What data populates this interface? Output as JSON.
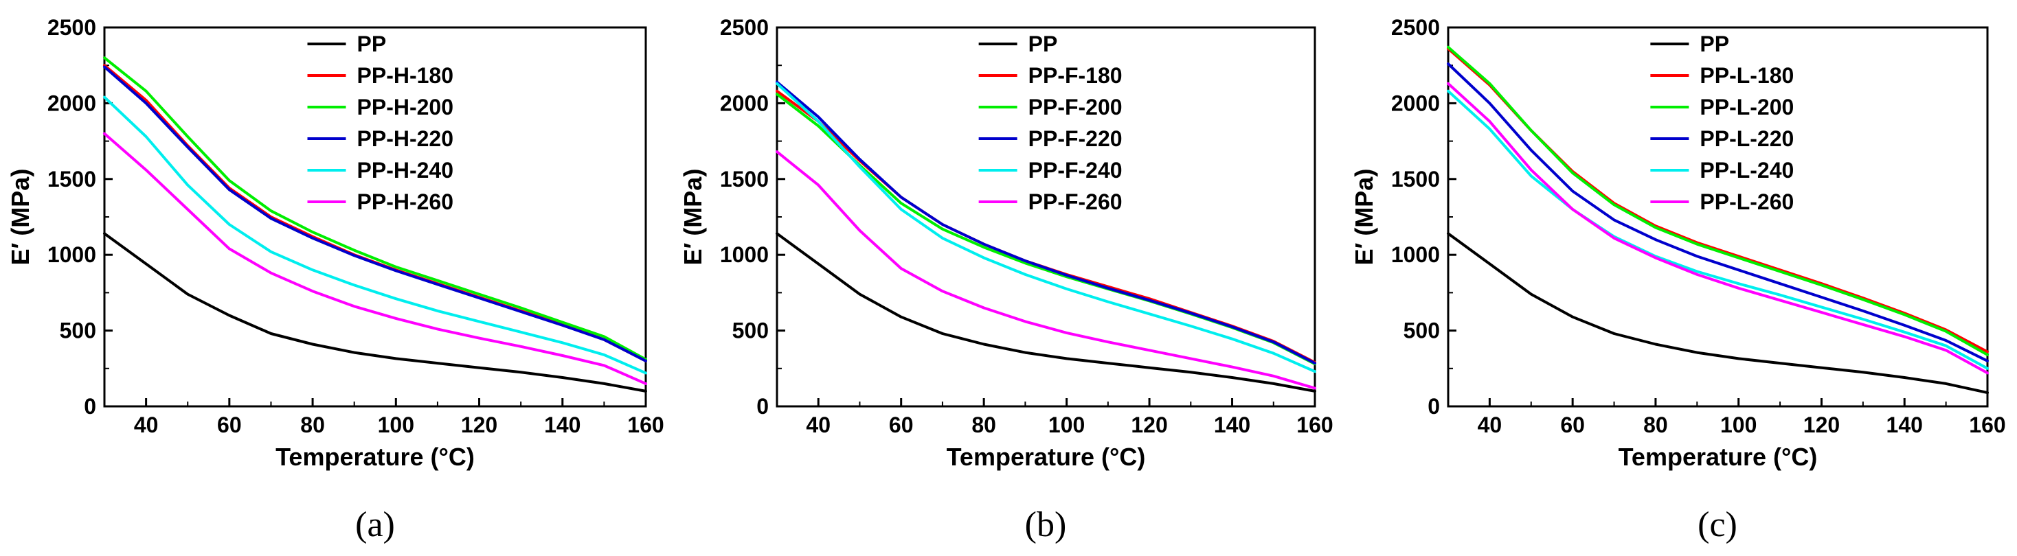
{
  "figure": {
    "panels": [
      "(a)",
      "(b)",
      "(c)"
    ]
  },
  "chart_data": [
    {
      "type": "line",
      "panel_label": "(a)",
      "xlabel": "Temperature (°C)",
      "ylabel": "E′ (MPa)",
      "xlim": [
        30,
        160
      ],
      "ylim": [
        0,
        2500
      ],
      "x_ticks": [
        40,
        60,
        80,
        100,
        120,
        140,
        160
      ],
      "y_ticks": [
        0,
        500,
        1000,
        1500,
        2000,
        2500
      ],
      "legend_position": "top-right",
      "x": [
        30,
        40,
        50,
        60,
        70,
        80,
        90,
        100,
        110,
        120,
        130,
        140,
        150,
        160
      ],
      "series": [
        {
          "name": "PP",
          "color": "#000000",
          "values": [
            1140,
            940,
            740,
            600,
            480,
            410,
            355,
            315,
            285,
            255,
            225,
            190,
            150,
            100
          ]
        },
        {
          "name": "PP-H-180",
          "color": "#ff0000",
          "values": [
            2250,
            2020,
            1720,
            1440,
            1250,
            1120,
            1000,
            900,
            810,
            720,
            630,
            540,
            440,
            300
          ]
        },
        {
          "name": "PP-H-200",
          "color": "#00ee00",
          "values": [
            2300,
            2080,
            1780,
            1490,
            1290,
            1150,
            1030,
            920,
            830,
            740,
            650,
            555,
            460,
            310
          ]
        },
        {
          "name": "PP-H-220",
          "color": "#0000cc",
          "values": [
            2240,
            2000,
            1710,
            1430,
            1240,
            1110,
            995,
            895,
            805,
            715,
            625,
            535,
            440,
            300
          ]
        },
        {
          "name": "PP-H-240",
          "color": "#00eeee",
          "values": [
            2040,
            1780,
            1460,
            1200,
            1020,
            900,
            800,
            710,
            630,
            560,
            490,
            420,
            340,
            220
          ]
        },
        {
          "name": "PP-H-260",
          "color": "#ff00ff",
          "values": [
            1800,
            1560,
            1300,
            1040,
            880,
            760,
            660,
            580,
            510,
            450,
            395,
            335,
            270,
            150
          ]
        }
      ]
    },
    {
      "type": "line",
      "panel_label": "(b)",
      "xlabel": "Temperature (°C)",
      "ylabel": "E′ (MPa)",
      "xlim": [
        30,
        160
      ],
      "ylim": [
        0,
        2500
      ],
      "x_ticks": [
        40,
        60,
        80,
        100,
        120,
        140,
        160
      ],
      "y_ticks": [
        0,
        500,
        1000,
        1500,
        2000,
        2500
      ],
      "legend_position": "top-right",
      "x": [
        30,
        40,
        50,
        60,
        70,
        80,
        90,
        100,
        110,
        120,
        130,
        140,
        150,
        160
      ],
      "series": [
        {
          "name": "PP",
          "color": "#000000",
          "values": [
            1140,
            940,
            740,
            590,
            480,
            410,
            355,
            315,
            285,
            255,
            225,
            190,
            150,
            100
          ]
        },
        {
          "name": "PP-F-180",
          "color": "#ff0000",
          "values": [
            2080,
            1880,
            1620,
            1380,
            1200,
            1070,
            960,
            870,
            790,
            710,
            620,
            530,
            430,
            290
          ]
        },
        {
          "name": "PP-F-200",
          "color": "#00ee00",
          "values": [
            2060,
            1850,
            1590,
            1340,
            1170,
            1050,
            945,
            855,
            775,
            695,
            610,
            520,
            420,
            280
          ]
        },
        {
          "name": "PP-F-220",
          "color": "#0000cc",
          "values": [
            2140,
            1910,
            1630,
            1380,
            1200,
            1070,
            960,
            865,
            780,
            700,
            615,
            525,
            425,
            285
          ]
        },
        {
          "name": "PP-F-240",
          "color": "#00eeee",
          "values": [
            2130,
            1880,
            1580,
            1300,
            1110,
            980,
            870,
            775,
            690,
            610,
            530,
            445,
            350,
            230
          ]
        },
        {
          "name": "PP-F-260",
          "color": "#ff00ff",
          "values": [
            1680,
            1460,
            1160,
            910,
            760,
            650,
            560,
            485,
            425,
            370,
            315,
            260,
            200,
            120
          ]
        }
      ]
    },
    {
      "type": "line",
      "panel_label": "(c)",
      "xlabel": "Temperature (°C)",
      "ylabel": "E′ (MPa)",
      "xlim": [
        30,
        160
      ],
      "ylim": [
        0,
        2500
      ],
      "x_ticks": [
        40,
        60,
        80,
        100,
        120,
        140,
        160
      ],
      "y_ticks": [
        0,
        500,
        1000,
        1500,
        2000,
        2500
      ],
      "legend_position": "top-right",
      "x": [
        30,
        40,
        50,
        60,
        70,
        80,
        90,
        100,
        110,
        120,
        130,
        140,
        150,
        160
      ],
      "series": [
        {
          "name": "PP",
          "color": "#000000",
          "values": [
            1140,
            940,
            740,
            590,
            480,
            410,
            355,
            315,
            285,
            255,
            225,
            190,
            150,
            90
          ]
        },
        {
          "name": "PP-L-180",
          "color": "#ff0000",
          "values": [
            2360,
            2120,
            1820,
            1550,
            1340,
            1190,
            1080,
            990,
            900,
            810,
            715,
            615,
            505,
            360
          ]
        },
        {
          "name": "PP-L-200",
          "color": "#00ee00",
          "values": [
            2370,
            2130,
            1820,
            1540,
            1330,
            1180,
            1070,
            980,
            890,
            800,
            705,
            605,
            495,
            340
          ]
        },
        {
          "name": "PP-L-220",
          "color": "#0000cc",
          "values": [
            2260,
            2000,
            1690,
            1420,
            1230,
            1100,
            990,
            900,
            810,
            720,
            630,
            535,
            435,
            300
          ]
        },
        {
          "name": "PP-L-240",
          "color": "#00eeee",
          "values": [
            2080,
            1830,
            1520,
            1300,
            1120,
            990,
            890,
            810,
            735,
            655,
            575,
            490,
            400,
            250
          ]
        },
        {
          "name": "PP-L-260",
          "color": "#ff00ff",
          "values": [
            2130,
            1880,
            1560,
            1300,
            1110,
            980,
            870,
            780,
            700,
            620,
            540,
            460,
            370,
            220
          ]
        }
      ]
    }
  ]
}
